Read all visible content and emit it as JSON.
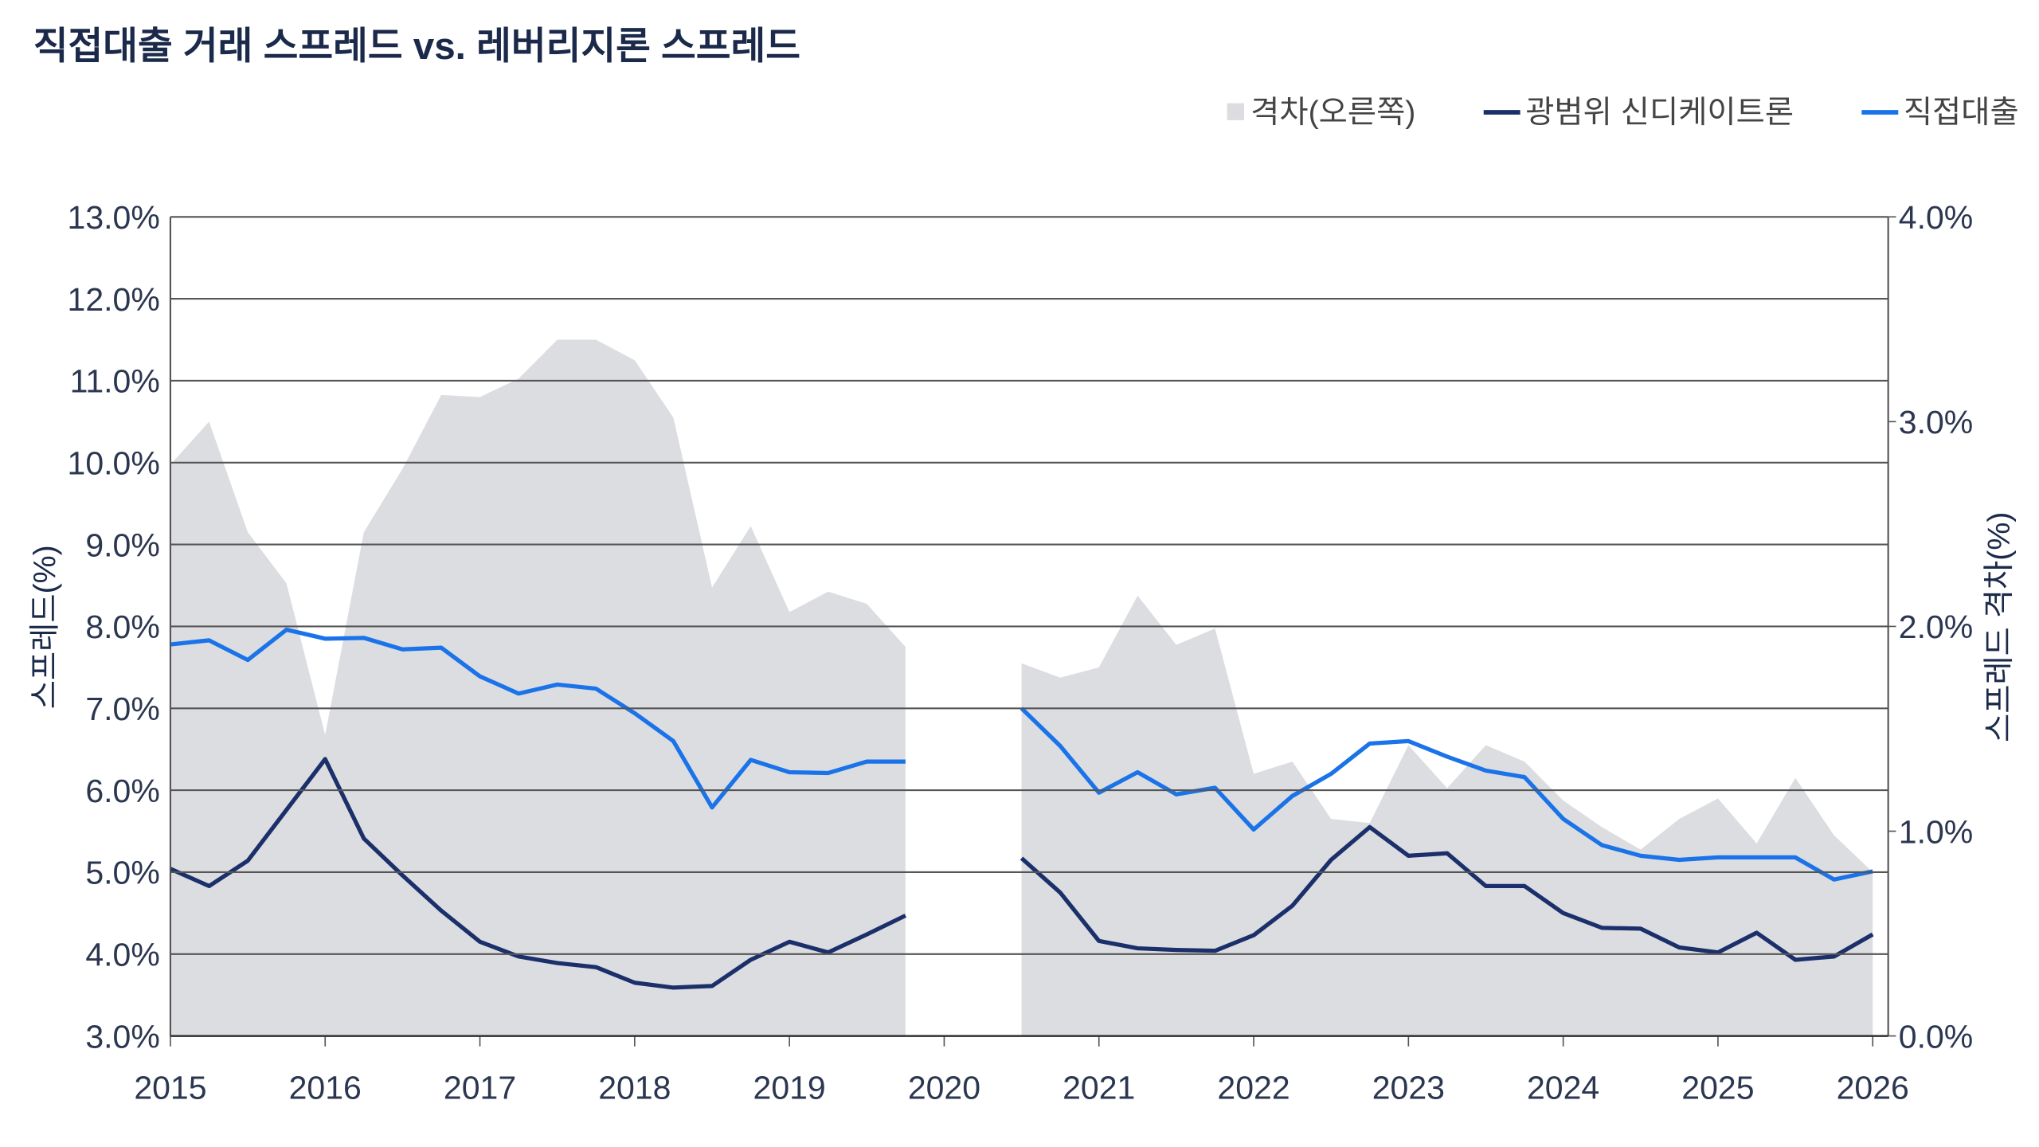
{
  "chart_data": {
    "type": "line",
    "title": "직접대출 거래 스프레드 vs. 레버리지론 스프레드",
    "y_label": "스프레드(%)",
    "y2_label": "스프레드 격차(%)",
    "x": [
      2015,
      2015.25,
      2015.5,
      2015.75,
      2016,
      2016.25,
      2016.5,
      2016.75,
      2017,
      2017.25,
      2017.5,
      2017.75,
      2018,
      2018.25,
      2018.5,
      2018.75,
      2019,
      2019.25,
      2019.5,
      2019.75,
      2020,
      2020.25,
      2020.5,
      2020.75,
      2021,
      2021.25,
      2021.5,
      2021.75,
      2022,
      2022.25,
      2022.5,
      2022.75,
      2023,
      2023.25,
      2023.5,
      2023.75,
      2024,
      2024.25,
      2024.5,
      2024.75,
      2025,
      2025.25,
      2025.5,
      2025.75,
      2026
    ],
    "xlim": [
      2015,
      2026.1
    ],
    "xticks": [
      2015,
      2016,
      2017,
      2018,
      2019,
      2020,
      2021,
      2022,
      2023,
      2024,
      2025,
      2026
    ],
    "ylim": [
      3,
      13
    ],
    "yticks": [
      {
        "value": 3,
        "label": "3.0%"
      },
      {
        "value": 4,
        "label": "4.0%"
      },
      {
        "value": 5,
        "label": "5.0%"
      },
      {
        "value": 6,
        "label": "6.0%"
      },
      {
        "value": 7,
        "label": "7.0%"
      },
      {
        "value": 8,
        "label": "8.0%"
      },
      {
        "value": 9,
        "label": "9.0%"
      },
      {
        "value": 10,
        "label": "10.0%"
      },
      {
        "value": 11,
        "label": "11.0%"
      },
      {
        "value": 12,
        "label": "12.0%"
      },
      {
        "value": 13,
        "label": "13.0%"
      }
    ],
    "y2lim": [
      0,
      4
    ],
    "y2ticks": [
      {
        "value": 0,
        "label": "0.0%"
      },
      {
        "value": 1,
        "label": "1.0%"
      },
      {
        "value": 2,
        "label": "2.0%"
      },
      {
        "value": 3,
        "label": "3.0%"
      },
      {
        "value": 4,
        "label": "4.0%"
      }
    ],
    "grid": true,
    "series": [
      {
        "name": "격차(오른쪽)",
        "kind": "area",
        "axis": "y2",
        "color": "#dcdde0",
        "values": [
          2.79,
          3.0,
          2.46,
          2.21,
          1.47,
          2.46,
          2.77,
          3.13,
          3.12,
          3.21,
          3.4,
          3.4,
          3.3,
          3.02,
          2.19,
          2.49,
          2.07,
          2.17,
          2.11,
          1.9,
          null,
          null,
          1.82,
          1.75,
          1.8,
          2.15,
          1.91,
          1.99,
          1.28,
          1.34,
          1.06,
          1.04,
          1.42,
          1.21,
          1.42,
          1.34,
          1.15,
          1.02,
          0.91,
          1.06,
          1.16,
          0.94,
          1.26,
          0.98,
          0.8
        ]
      },
      {
        "name": "광범위 신디케이트론",
        "kind": "line",
        "color": "#1b2f6b",
        "values": [
          5.04,
          4.83,
          5.14,
          5.76,
          6.38,
          5.41,
          4.96,
          4.53,
          4.15,
          3.97,
          3.89,
          3.84,
          3.65,
          3.59,
          3.61,
          3.93,
          4.15,
          4.02,
          4.24,
          4.47,
          null,
          null,
          5.17,
          4.75,
          4.16,
          4.07,
          4.05,
          4.04,
          4.23,
          4.59,
          5.15,
          5.55,
          5.2,
          5.23,
          4.83,
          4.83,
          4.5,
          4.32,
          4.31,
          4.08,
          4.02,
          4.26,
          3.93,
          3.97,
          4.24
        ]
      },
      {
        "name": "직접대출",
        "kind": "line",
        "color": "#1a73e8",
        "values": [
          7.78,
          7.83,
          7.59,
          7.96,
          7.85,
          7.86,
          7.72,
          7.74,
          7.39,
          7.18,
          7.29,
          7.24,
          6.94,
          6.6,
          5.79,
          6.37,
          6.22,
          6.21,
          6.35,
          6.35,
          null,
          null,
          7.0,
          6.54,
          5.97,
          6.22,
          5.95,
          6.03,
          5.52,
          5.93,
          6.2,
          6.57,
          6.6,
          6.41,
          6.24,
          6.16,
          5.65,
          5.33,
          5.2,
          5.15,
          5.18,
          5.18,
          5.18,
          4.91,
          5.01
        ]
      }
    ]
  }
}
